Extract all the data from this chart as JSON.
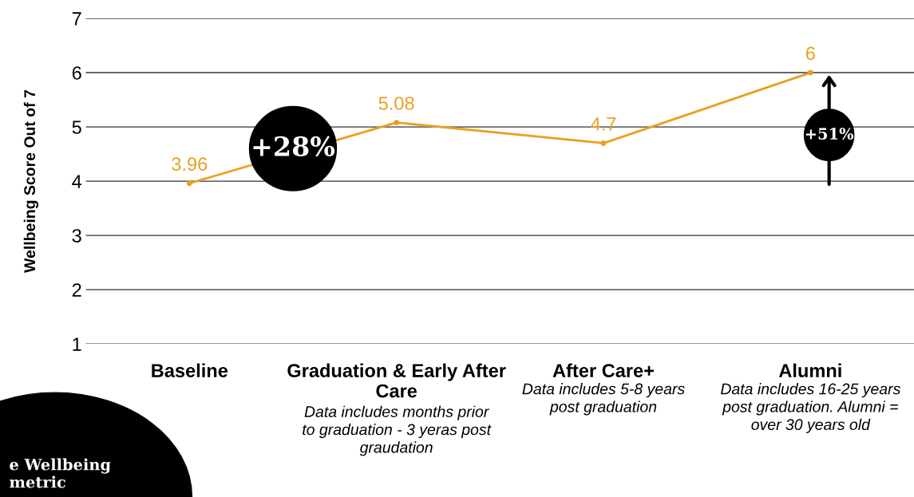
{
  "chart_data": {
    "type": "line",
    "ylabel": "Wellbeing Score Out of 7",
    "categories": [
      "Baseline",
      "Graduation & Early After Care",
      "After Care+",
      "Alumni"
    ],
    "series": [
      {
        "color": "#e8a020",
        "values": [
          3.96,
          5.08,
          4.7,
          6
        ]
      }
    ],
    "ylim": [
      1,
      7
    ],
    "yticks": [
      1,
      2,
      3,
      4,
      5,
      6,
      7
    ],
    "grid": "y",
    "marker": "circle",
    "line_style": "solid",
    "data_labels": true,
    "annotations": [
      "Data includes months prior to graduation - 3 yeras post graudation",
      "Data includes 5-8 years post graduation",
      "Data includes 16-25 years post graduation. Alumni = over 30 years old",
      "+28%",
      "+51%",
      "e Wellbeing metric"
    ]
  }
}
